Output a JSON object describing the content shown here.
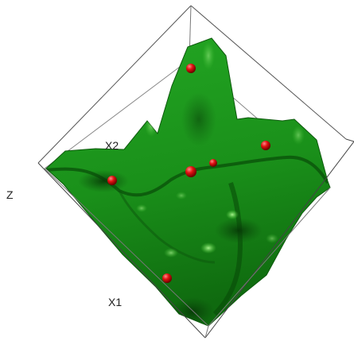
{
  "chart_data": {
    "type": "surface3d",
    "xlabel": "X1",
    "ylabel": "X2",
    "zlabel": "Z",
    "colors": {
      "surface": "#1c8f1c",
      "surface_dark": "#0a3f0a",
      "surface_light": "#6fdd5a",
      "points": "#e01010",
      "box": "#444444",
      "background": "#ffffff"
    }
  }
}
